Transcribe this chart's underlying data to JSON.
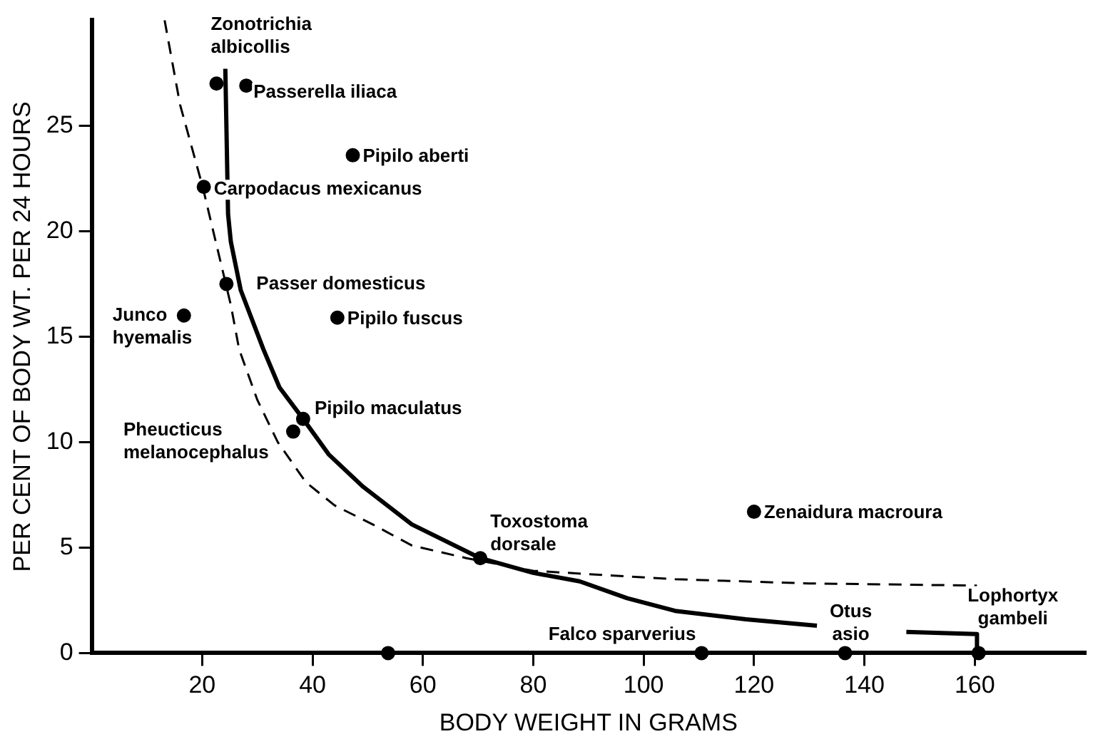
{
  "chart_data": {
    "type": "scatter",
    "xlabel": "BODY WEIGHT IN GRAMS",
    "ylabel": "PER CENT OF BODY WT. PER 24 HOURS",
    "xlim": [
      0,
      180
    ],
    "ylim": [
      0,
      30
    ],
    "xticks": [
      20,
      40,
      60,
      80,
      100,
      120,
      140,
      160
    ],
    "yticks": [
      0,
      5,
      10,
      15,
      20,
      25
    ],
    "grid": false,
    "legend": false,
    "series": [
      {
        "type": "line",
        "color": "#000000",
        "line_style": "solid",
        "marker": "none",
        "x": [
          24.2,
          24.7,
          25.2,
          27,
          31.1,
          34,
          38.3,
          43,
          49.1,
          58,
          70.4,
          80,
          88.4,
          97,
          105.7,
          118.5,
          131.4
        ],
        "values": [
          27.7,
          20.8,
          19.5,
          17.2,
          14.4,
          12.6,
          11.1,
          9.4,
          7.9,
          6.1,
          4.5,
          3.8,
          3.4,
          2.6,
          2.0,
          1.6,
          1.3
        ]
      },
      {
        "type": "line",
        "color": "#000000",
        "line_style": "solid",
        "marker": "none",
        "x": [
          147.6,
          160.4,
          160.4
        ],
        "values": [
          1.0,
          0.9,
          0
        ]
      },
      {
        "type": "line",
        "color": "#000000",
        "line_style": "dashed",
        "marker": "none",
        "x": [
          13.2,
          16,
          20.1,
          25.2,
          26.7,
          30,
          33.7,
          38.8,
          44,
          50.9,
          58,
          67.9,
          80,
          105.7,
          130,
          160.4
        ],
        "values": [
          30,
          26,
          22.1,
          16.5,
          14.4,
          12,
          10.0,
          8.1,
          7,
          6.1,
          5.1,
          4.5,
          3.9,
          3.5,
          3.3,
          3.2
        ]
      },
      {
        "type": "scatter",
        "color": "#000000",
        "marker": "circle",
        "x": [
          22.6,
          28.0,
          47.3,
          20.3,
          24.4,
          16.7,
          44.5,
          38.3,
          36.5,
          70.4,
          120,
          110.5,
          136.5,
          160.7,
          53.7
        ],
        "values": [
          27.0,
          26.9,
          23.6,
          22.1,
          17.5,
          16.0,
          15.9,
          11.1,
          10.5,
          4.5,
          6.7,
          0,
          0,
          0,
          0
        ]
      }
    ],
    "annotations": [
      {
        "text": "Zonotrichia\nalbicollis",
        "x": 22.6,
        "y": 27.0
      },
      {
        "text": "Passerella iliaca",
        "x": 28.0,
        "y": 26.9
      },
      {
        "text": "Pipilo aberti",
        "x": 47.3,
        "y": 23.6
      },
      {
        "text": "Carpodacus mexicanus",
        "x": 20.3,
        "y": 22.1
      },
      {
        "text": "Passer domesticus",
        "x": 24.4,
        "y": 17.5
      },
      {
        "text": "Junco\nhyemalis",
        "x": 16.7,
        "y": 16.0
      },
      {
        "text": "Pipilo fuscus",
        "x": 44.5,
        "y": 15.9
      },
      {
        "text": "Pipilo maculatus",
        "x": 38.3,
        "y": 11.1
      },
      {
        "text": "Pheucticus\nmelanocephalus",
        "x": 36.5,
        "y": 10.5
      },
      {
        "text": "Toxostoma\ndorsale",
        "x": 70.4,
        "y": 4.5
      },
      {
        "text": "Zenaidura macroura",
        "x": 120,
        "y": 6.7
      },
      {
        "text": "Falco sparverius",
        "x": 110.5,
        "y": 0
      },
      {
        "text": "Otus\nasio",
        "x": 136.5,
        "y": 0
      },
      {
        "text": "Lophortyx\ngambeli",
        "x": 160.7,
        "y": 0
      }
    ]
  }
}
